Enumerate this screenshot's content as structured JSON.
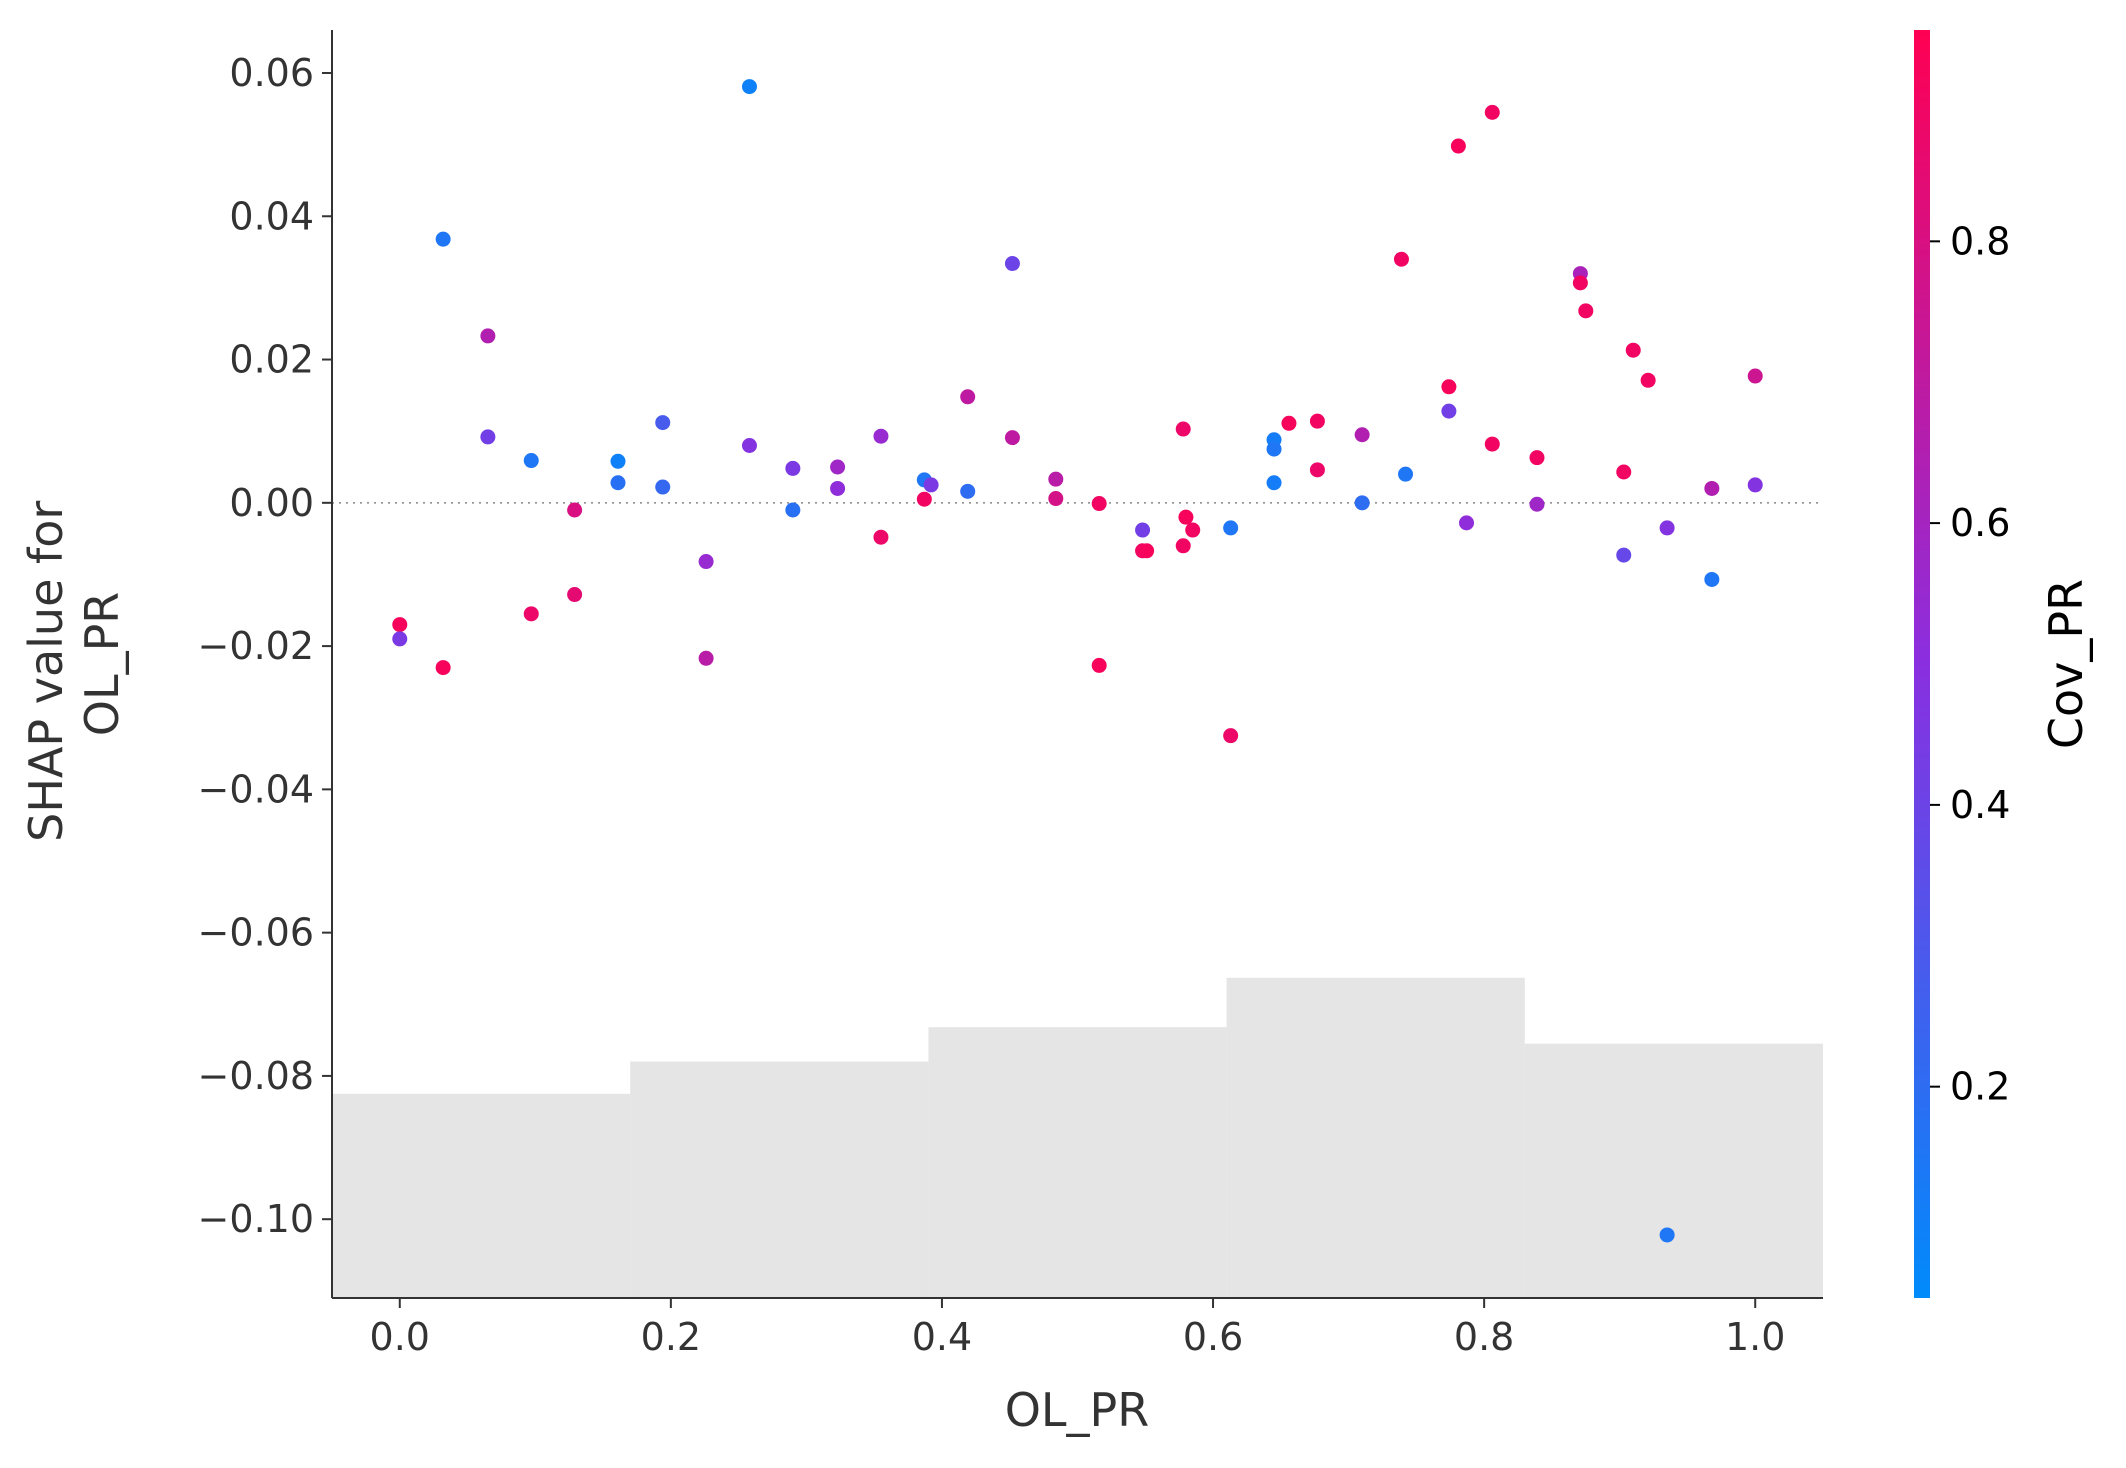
{
  "chart_data": {
    "type": "scatter",
    "title": "",
    "xlabel": "OL_PR",
    "ylabel": "SHAP value for\nOL_PR",
    "xlim": [
      -0.05,
      1.05
    ],
    "ylim": [
      -0.111,
      0.066
    ],
    "x_ticks": [
      0.0,
      0.2,
      0.4,
      0.6,
      0.8,
      1.0
    ],
    "x_tick_labels": [
      "0.0",
      "0.2",
      "0.4",
      "0.6",
      "0.8",
      "1.0"
    ],
    "y_ticks": [
      0.06,
      0.04,
      0.02,
      0.0,
      -0.02,
      -0.04,
      -0.06,
      -0.08,
      -0.1
    ],
    "y_tick_labels": [
      "0.06",
      "0.04",
      "0.02",
      "0.00",
      "−0.02",
      "−0.04",
      "−0.06",
      "−0.08",
      "−0.10"
    ],
    "zero_line": true,
    "grid": false,
    "colorbar": {
      "label": "Cov_PR",
      "range": [
        0.05,
        0.95
      ],
      "ticks": [
        0.2,
        0.4,
        0.6,
        0.8
      ],
      "tick_labels": [
        "0.2",
        "0.4",
        "0.6",
        "0.8"
      ],
      "colors": [
        "#008bfb",
        "#ff0052"
      ]
    },
    "histogram": {
      "color": "#e5e5e5",
      "y_base": -0.111,
      "bins": [
        {
          "x0": -0.05,
          "x1": 0.17,
          "top": -0.0825
        },
        {
          "x0": 0.17,
          "x1": 0.39,
          "top": -0.078
        },
        {
          "x0": 0.39,
          "x1": 0.61,
          "top": -0.0732
        },
        {
          "x0": 0.61,
          "x1": 0.83,
          "top": -0.0663
        },
        {
          "x0": 0.83,
          "x1": 1.05,
          "top": -0.0755
        }
      ]
    },
    "points": [
      {
        "x": 0.0,
        "y": -0.017,
        "c": 0.92
      },
      {
        "x": 0.0,
        "y": -0.019,
        "c": 0.45
      },
      {
        "x": 0.032,
        "y": 0.0368,
        "c": 0.15
      },
      {
        "x": 0.032,
        "y": -0.023,
        "c": 0.92
      },
      {
        "x": 0.065,
        "y": 0.0233,
        "c": 0.65
      },
      {
        "x": 0.065,
        "y": 0.0092,
        "c": 0.42
      },
      {
        "x": 0.097,
        "y": 0.0059,
        "c": 0.15
      },
      {
        "x": 0.097,
        "y": -0.0155,
        "c": 0.88
      },
      {
        "x": 0.129,
        "y": -0.001,
        "c": 0.8
      },
      {
        "x": 0.129,
        "y": -0.0128,
        "c": 0.85
      },
      {
        "x": 0.161,
        "y": 0.0058,
        "c": 0.1
      },
      {
        "x": 0.161,
        "y": 0.0028,
        "c": 0.18
      },
      {
        "x": 0.194,
        "y": 0.0112,
        "c": 0.28
      },
      {
        "x": 0.194,
        "y": 0.0022,
        "c": 0.22
      },
      {
        "x": 0.226,
        "y": -0.0082,
        "c": 0.55
      },
      {
        "x": 0.226,
        "y": -0.0217,
        "c": 0.68
      },
      {
        "x": 0.258,
        "y": 0.0581,
        "c": 0.1
      },
      {
        "x": 0.258,
        "y": 0.008,
        "c": 0.48
      },
      {
        "x": 0.29,
        "y": 0.0048,
        "c": 0.45
      },
      {
        "x": 0.29,
        "y": -0.001,
        "c": 0.18
      },
      {
        "x": 0.323,
        "y": 0.005,
        "c": 0.58
      },
      {
        "x": 0.323,
        "y": 0.002,
        "c": 0.52
      },
      {
        "x": 0.355,
        "y": 0.0093,
        "c": 0.55
      },
      {
        "x": 0.355,
        "y": -0.0048,
        "c": 0.88
      },
      {
        "x": 0.387,
        "y": 0.0032,
        "c": 0.15
      },
      {
        "x": 0.387,
        "y": 0.0005,
        "c": 0.9
      },
      {
        "x": 0.392,
        "y": 0.0025,
        "c": 0.45
      },
      {
        "x": 0.419,
        "y": 0.0148,
        "c": 0.7
      },
      {
        "x": 0.419,
        "y": 0.0016,
        "c": 0.2
      },
      {
        "x": 0.452,
        "y": 0.0334,
        "c": 0.4
      },
      {
        "x": 0.452,
        "y": 0.0091,
        "c": 0.7
      },
      {
        "x": 0.484,
        "y": 0.0033,
        "c": 0.68
      },
      {
        "x": 0.484,
        "y": 0.0006,
        "c": 0.78
      },
      {
        "x": 0.516,
        "y": -0.0001,
        "c": 0.9
      },
      {
        "x": 0.516,
        "y": -0.0227,
        "c": 0.92
      },
      {
        "x": 0.548,
        "y": -0.0038,
        "c": 0.42
      },
      {
        "x": 0.548,
        "y": -0.0067,
        "c": 0.9
      },
      {
        "x": 0.551,
        "y": -0.0067,
        "c": 0.92
      },
      {
        "x": 0.578,
        "y": 0.0103,
        "c": 0.88
      },
      {
        "x": 0.578,
        "y": -0.006,
        "c": 0.9
      },
      {
        "x": 0.58,
        "y": -0.002,
        "c": 0.92
      },
      {
        "x": 0.585,
        "y": -0.0038,
        "c": 0.9
      },
      {
        "x": 0.613,
        "y": -0.0035,
        "c": 0.15
      },
      {
        "x": 0.613,
        "y": -0.0325,
        "c": 0.88
      },
      {
        "x": 0.645,
        "y": 0.0088,
        "c": 0.12
      },
      {
        "x": 0.645,
        "y": 0.0075,
        "c": 0.15
      },
      {
        "x": 0.645,
        "y": 0.0028,
        "c": 0.12
      },
      {
        "x": 0.656,
        "y": 0.0111,
        "c": 0.92
      },
      {
        "x": 0.677,
        "y": 0.0114,
        "c": 0.9
      },
      {
        "x": 0.677,
        "y": 0.0046,
        "c": 0.88
      },
      {
        "x": 0.71,
        "y": 0.0095,
        "c": 0.65
      },
      {
        "x": 0.71,
        "y": 0.0,
        "c": 0.2
      },
      {
        "x": 0.739,
        "y": 0.034,
        "c": 0.9
      },
      {
        "x": 0.742,
        "y": 0.004,
        "c": 0.15
      },
      {
        "x": 0.774,
        "y": 0.0162,
        "c": 0.92
      },
      {
        "x": 0.774,
        "y": 0.0128,
        "c": 0.42
      },
      {
        "x": 0.781,
        "y": 0.0498,
        "c": 0.92
      },
      {
        "x": 0.787,
        "y": -0.0028,
        "c": 0.52
      },
      {
        "x": 0.806,
        "y": 0.0545,
        "c": 0.9
      },
      {
        "x": 0.806,
        "y": 0.0082,
        "c": 0.9
      },
      {
        "x": 0.839,
        "y": 0.0063,
        "c": 0.9
      },
      {
        "x": 0.839,
        "y": -0.0002,
        "c": 0.58
      },
      {
        "x": 0.871,
        "y": 0.032,
        "c": 0.62
      },
      {
        "x": 0.871,
        "y": 0.0307,
        "c": 0.9
      },
      {
        "x": 0.875,
        "y": 0.0268,
        "c": 0.9
      },
      {
        "x": 0.903,
        "y": 0.0043,
        "c": 0.9
      },
      {
        "x": 0.903,
        "y": -0.0073,
        "c": 0.38
      },
      {
        "x": 0.91,
        "y": 0.0213,
        "c": 0.9
      },
      {
        "x": 0.921,
        "y": 0.0171,
        "c": 0.9
      },
      {
        "x": 0.935,
        "y": -0.0035,
        "c": 0.48
      },
      {
        "x": 0.935,
        "y": -0.1022,
        "c": 0.15
      },
      {
        "x": 0.968,
        "y": 0.002,
        "c": 0.65
      },
      {
        "x": 0.968,
        "y": -0.0107,
        "c": 0.15
      },
      {
        "x": 1.0,
        "y": 0.0177,
        "c": 0.75
      },
      {
        "x": 1.0,
        "y": 0.0025,
        "c": 0.48
      }
    ]
  }
}
